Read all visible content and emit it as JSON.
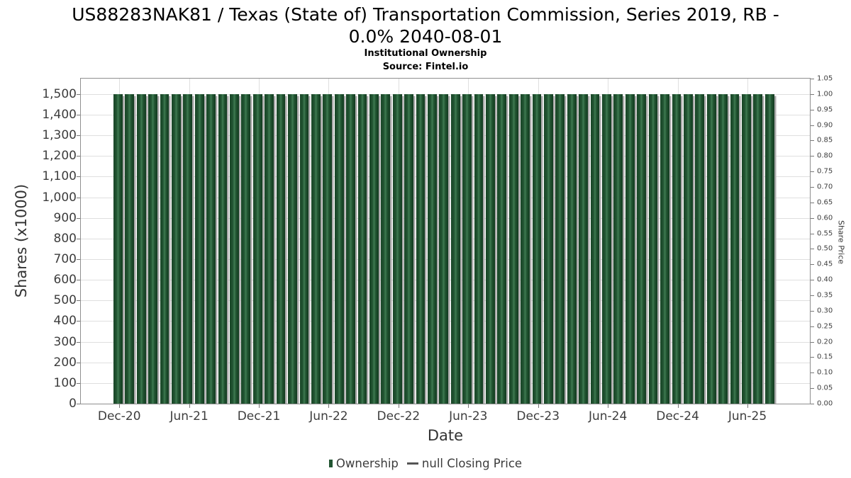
{
  "style": {
    "bar_dark": "#1a4628",
    "bar_mid": "#215431",
    "bar_light": "#3f7a52",
    "bar_edge": "#123a20",
    "bar_shadow": "#a8a8a8",
    "line_legend_color": "#555555",
    "tick_text": "#3d3d3d",
    "grid": "#dfdfdf"
  },
  "chart_data": {
    "type": "bar",
    "title": "US88283NAK81 / Texas (State of) Transportation Commission, Series 2019, RB - 0.0% 2040-08-01",
    "title_lines": [
      "US88283NAK81 / Texas (State of) Transportation Commission, Series 2019, RB -",
      "0.0% 2040-08-01"
    ],
    "subtitle": "Institutional Ownership",
    "source": "Source: Fintel.io",
    "grid": true,
    "legend_position": "bottom",
    "categories": [
      "Dec-20",
      "Jan-21",
      "Feb-21",
      "Mar-21",
      "Apr-21",
      "May-21",
      "Jun-21",
      "Jul-21",
      "Aug-21",
      "Sep-21",
      "Oct-21",
      "Nov-21",
      "Dec-21",
      "Jan-22",
      "Feb-22",
      "Mar-22",
      "Apr-22",
      "May-22",
      "Jun-22",
      "Jul-22",
      "Aug-22",
      "Sep-22",
      "Oct-22",
      "Nov-22",
      "Dec-22",
      "Jan-23",
      "Feb-23",
      "Mar-23",
      "Apr-23",
      "May-23",
      "Jun-23",
      "Jul-23",
      "Aug-23",
      "Sep-23",
      "Oct-23",
      "Nov-23",
      "Dec-23",
      "Jan-24",
      "Feb-24",
      "Mar-24",
      "Apr-24",
      "May-24",
      "Jun-24",
      "Jul-24",
      "Aug-24",
      "Sep-24",
      "Oct-24",
      "Nov-24",
      "Dec-24",
      "Jan-25",
      "Feb-25",
      "Mar-25",
      "Apr-25",
      "May-25",
      "Jun-25",
      "Jul-25",
      "Aug-25"
    ],
    "series": [
      {
        "name": "Ownership",
        "type": "bar",
        "axis": "left",
        "values": [
          1500,
          1500,
          1500,
          1500,
          1500,
          1500,
          1500,
          1500,
          1500,
          1500,
          1500,
          1500,
          1500,
          1500,
          1500,
          1500,
          1500,
          1500,
          1500,
          1500,
          1500,
          1500,
          1500,
          1500,
          1500,
          1500,
          1500,
          1500,
          1500,
          1500,
          1500,
          1500,
          1500,
          1500,
          1500,
          1500,
          1500,
          1500,
          1500,
          1500,
          1500,
          1500,
          1500,
          1500,
          1500,
          1500,
          1500,
          1500,
          1500,
          1500,
          1500,
          1500,
          1500,
          1500,
          1500,
          1500,
          1500
        ]
      },
      {
        "name": "null Closing Price",
        "type": "line",
        "axis": "right",
        "values": []
      }
    ],
    "x_axis": {
      "title": "Date",
      "tick_positions": [
        0,
        6,
        12,
        18,
        24,
        30,
        36,
        42,
        48,
        54
      ],
      "tick_labels": [
        "Dec-20",
        "Jun-21",
        "Dec-21",
        "Jun-22",
        "Dec-22",
        "Jun-23",
        "Dec-23",
        "Jun-24",
        "Dec-24",
        "Jun-25"
      ]
    },
    "left_axis": {
      "title": "Shares (x1000)",
      "min": 0,
      "max": 1575,
      "tick_values": [
        0,
        100,
        200,
        300,
        400,
        500,
        600,
        700,
        800,
        900,
        1000,
        1100,
        1200,
        1300,
        1400,
        1500
      ],
      "tick_labels": [
        "0",
        "100",
        "200",
        "300",
        "400",
        "500",
        "600",
        "700",
        "800",
        "900",
        "1,000",
        "1,100",
        "1,200",
        "1,300",
        "1,400",
        "1,500"
      ]
    },
    "right_axis": {
      "title": "Share Price",
      "min": 0,
      "max": 1.05,
      "tick_values": [
        0,
        0.05,
        0.1,
        0.15,
        0.2,
        0.25,
        0.3,
        0.35,
        0.4,
        0.45,
        0.5,
        0.55,
        0.6,
        0.65,
        0.7,
        0.75,
        0.8,
        0.85,
        0.9,
        0.95,
        1.0,
        1.05
      ],
      "tick_labels": [
        "0.00",
        "0.05",
        "0.10",
        "0.15",
        "0.20",
        "0.25",
        "0.30",
        "0.35",
        "0.40",
        "0.45",
        "0.50",
        "0.55",
        "0.60",
        "0.65",
        "0.70",
        "0.75",
        "0.80",
        "0.85",
        "0.90",
        "0.95",
        "1.00",
        "1.05"
      ]
    }
  }
}
